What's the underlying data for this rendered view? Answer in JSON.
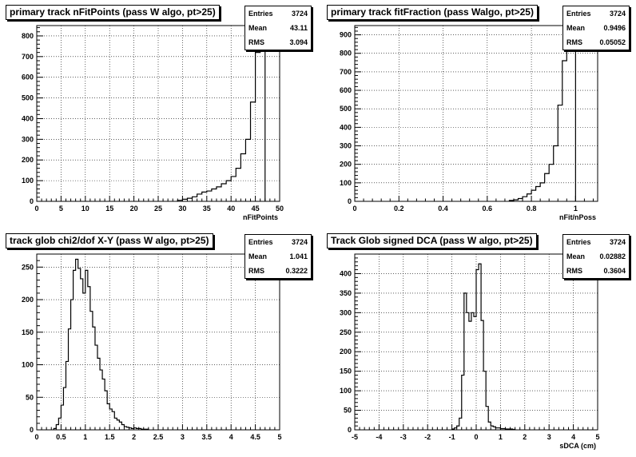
{
  "chart_data": [
    {
      "type": "bar",
      "title": "primary track nFitPoints (pass W algo, pt>25)",
      "xlabel": "nFitPoints",
      "ylabel": "",
      "xlim": [
        0,
        50
      ],
      "ylim": [
        0,
        850
      ],
      "xticks": [
        "0",
        "5",
        "10",
        "15",
        "20",
        "25",
        "30",
        "35",
        "40",
        "45",
        "50"
      ],
      "yticks": [
        "0",
        "100",
        "200",
        "300",
        "400",
        "500",
        "600",
        "700",
        "800"
      ],
      "grid": true,
      "stats": {
        "entries_label": "Entries",
        "entries": "3724",
        "mean_label": "Mean",
        "mean": "43.11",
        "rms_label": "RMS",
        "rms": "3.094"
      },
      "bin_edges": [
        29,
        30,
        31,
        32,
        33,
        34,
        35,
        36,
        37,
        38,
        39,
        40,
        41,
        42,
        43,
        44,
        45,
        46,
        47
      ],
      "values": [
        5,
        10,
        15,
        22,
        35,
        45,
        50,
        60,
        70,
        85,
        100,
        120,
        160,
        230,
        300,
        480,
        720,
        780
      ]
    },
    {
      "type": "bar",
      "title": "primary track fitFraction (pass Walgo, pt>25)",
      "xlabel": "nFit/nPoss",
      "ylabel": "",
      "xlim": [
        0,
        1.1
      ],
      "ylim": [
        0,
        950
      ],
      "xticks": [
        "0",
        "0.2",
        "0.4",
        "0.6",
        "0.8",
        "1"
      ],
      "yticks": [
        "0",
        "100",
        "200",
        "300",
        "400",
        "500",
        "600",
        "700",
        "800",
        "900"
      ],
      "grid": true,
      "stats": {
        "entries_label": "Entries",
        "entries": "3724",
        "mean_label": "Mean",
        "mean": "0.9496",
        "rms_label": "RMS",
        "rms": "0.05052"
      },
      "bin_edges": [
        0.7,
        0.72,
        0.74,
        0.76,
        0.78,
        0.8,
        0.82,
        0.84,
        0.86,
        0.88,
        0.9,
        0.92,
        0.94,
        0.96,
        0.98,
        1.0
      ],
      "values": [
        5,
        8,
        15,
        25,
        40,
        60,
        80,
        100,
        150,
        200,
        300,
        520,
        760,
        850,
        810
      ]
    },
    {
      "type": "bar",
      "title": "track glob chi2/dof X-Y (pass W algo, pt>25)",
      "xlabel": "",
      "ylabel": "",
      "xlim": [
        0,
        5
      ],
      "ylim": [
        0,
        270
      ],
      "xticks": [
        "0",
        "0.5",
        "1",
        "1.5",
        "2",
        "2.5",
        "3",
        "3.5",
        "4",
        "4.5",
        "5"
      ],
      "yticks": [
        "0",
        "50",
        "100",
        "150",
        "200",
        "250"
      ],
      "grid": true,
      "stats": {
        "entries_label": "Entries",
        "entries": "3724",
        "mean_label": "Mean",
        "mean": "1.041",
        "rms_label": "RMS",
        "rms": "0.3222"
      },
      "bin_edges": [
        0.35,
        0.4,
        0.45,
        0.5,
        0.55,
        0.6,
        0.65,
        0.7,
        0.75,
        0.8,
        0.85,
        0.9,
        0.95,
        1.0,
        1.05,
        1.1,
        1.15,
        1.2,
        1.25,
        1.3,
        1.35,
        1.4,
        1.45,
        1.5,
        1.55,
        1.6,
        1.65,
        1.7,
        1.75,
        1.8,
        1.85,
        1.9,
        1.95,
        2.0,
        2.05,
        2.1,
        2.15,
        2.2,
        2.25,
        2.3
      ],
      "values": [
        2,
        8,
        18,
        38,
        65,
        105,
        155,
        200,
        245,
        262,
        248,
        232,
        210,
        245,
        220,
        182,
        158,
        130,
        110,
        92,
        78,
        60,
        40,
        32,
        28,
        18,
        15,
        12,
        8,
        5,
        4,
        3,
        2,
        3,
        2,
        2,
        1,
        1,
        1
      ]
    },
    {
      "type": "bar",
      "title": "Track Glob signed DCA (pass W algo, pt>25)",
      "xlabel": "sDCA (cm)",
      "ylabel": "",
      "xlim": [
        -5,
        5
      ],
      "ylim": [
        0,
        450
      ],
      "xticks": [
        "-5",
        "-4",
        "-3",
        "-2",
        "-1",
        "0",
        "1",
        "2",
        "3",
        "4",
        "5"
      ],
      "yticks": [
        "0",
        "50",
        "100",
        "150",
        "200",
        "250",
        "300",
        "350",
        "400"
      ],
      "grid": true,
      "stats": {
        "entries_label": "Entries",
        "entries": "3724",
        "mean_label": "Mean",
        "mean": "0.02882",
        "rms_label": "RMS",
        "rms": "0.3604"
      },
      "bin_edges": [
        -1.0,
        -0.9,
        -0.8,
        -0.7,
        -0.6,
        -0.5,
        -0.4,
        -0.3,
        -0.2,
        -0.1,
        0.0,
        0.1,
        0.2,
        0.3,
        0.4,
        0.5,
        0.6,
        0.7,
        0.8,
        0.9,
        1.0,
        1.1,
        1.2,
        1.3,
        1.4,
        1.5,
        1.6
      ],
      "values": [
        2,
        5,
        10,
        30,
        140,
        350,
        300,
        278,
        300,
        290,
        410,
        425,
        280,
        150,
        60,
        20,
        10,
        8,
        5,
        5,
        3,
        3,
        2,
        2,
        2,
        1
      ]
    }
  ]
}
